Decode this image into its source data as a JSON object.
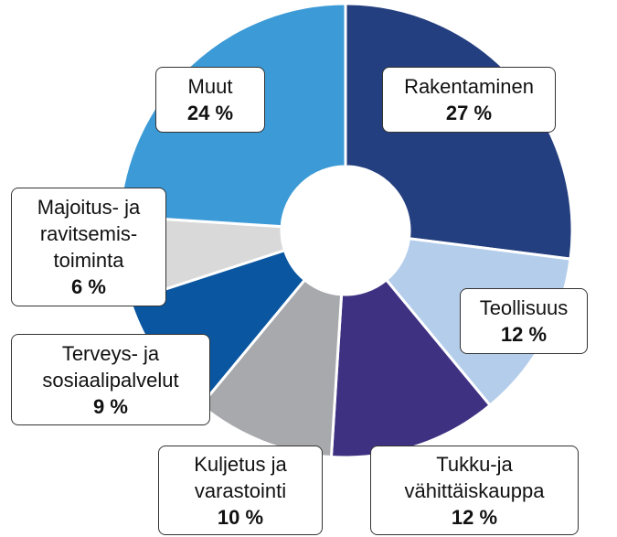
{
  "chart_data": {
    "type": "pie",
    "categories": [
      "Rakentaminen",
      "Teollisuus",
      "Tukku-ja\nvähittäiskauppa",
      "Kuljetus ja\nvarastointi",
      "Terveys- ja\nsosiaalipalvelut",
      "Majoitus- ja\nravitsemis-\ntoiminta",
      "Muut"
    ],
    "values": [
      27,
      12,
      12,
      10,
      9,
      6,
      24
    ],
    "value_labels": [
      "27 %",
      "12 %",
      "12 %",
      "10 %",
      "9 %",
      "6 %",
      "24 %"
    ],
    "colors": [
      "#243f7f",
      "#b3cdeb",
      "#3f3182",
      "#a8a9ad",
      "#0a56a0",
      "#d9d9d9",
      "#3c9ad6"
    ]
  }
}
